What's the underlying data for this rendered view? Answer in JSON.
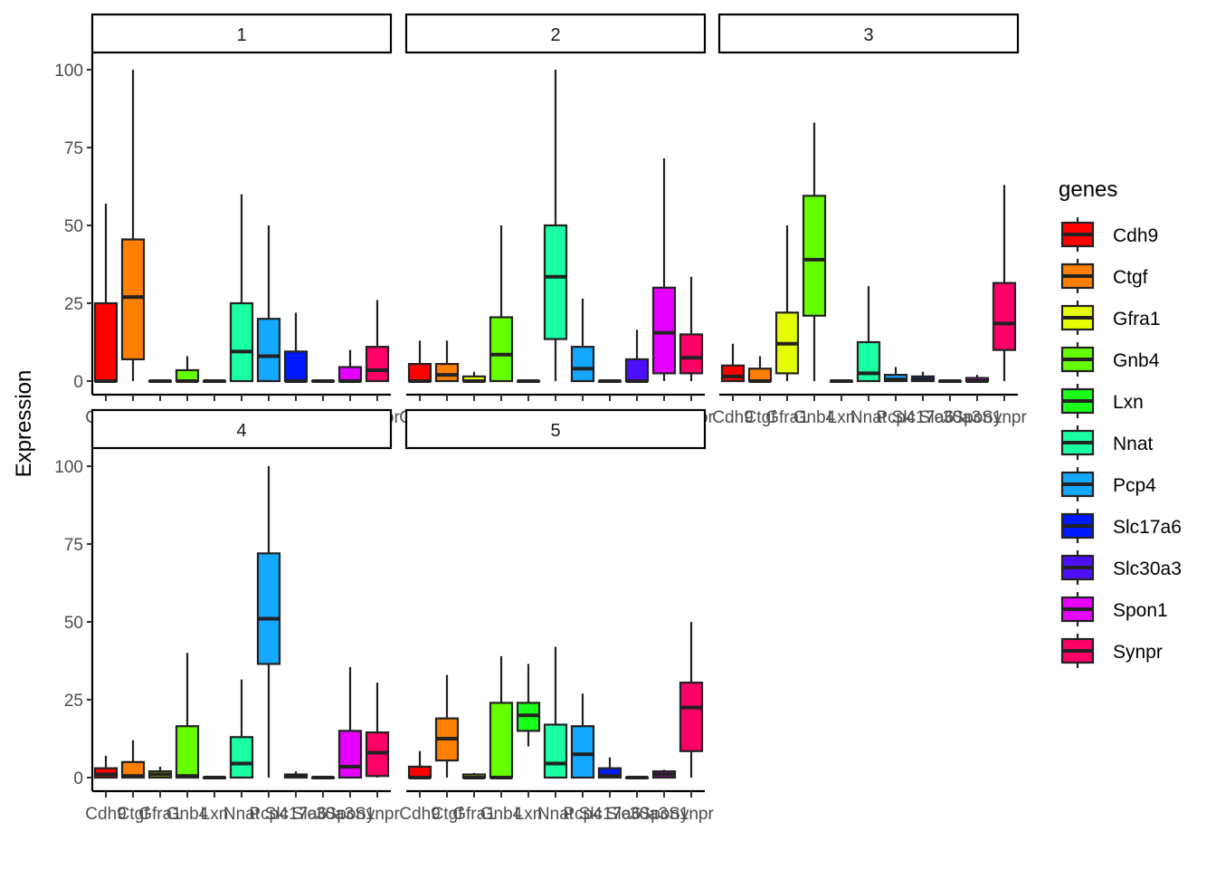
{
  "chart_data": {
    "type": "boxplot",
    "ylabel": "Expression",
    "xlabel": "",
    "ylim": [
      0,
      100
    ],
    "y_ticks": [
      0,
      25,
      50,
      75,
      100
    ],
    "facet_layout": "wrap, 3 columns, free x-axis labels per panel",
    "genes": [
      "Cdh9",
      "Ctgf",
      "Gfra1",
      "Gnb4",
      "Lxn",
      "Nnat",
      "Pcp4",
      "Slc17a6",
      "Slc30a3",
      "Spon1",
      "Synpr"
    ],
    "colors": {
      "Cdh9": "#FF0000",
      "Ctgf": "#FF7F00",
      "Gfra1": "#E5FF00",
      "Gnb4": "#66FF00",
      "Lxn": "#1AFF1A",
      "Nnat": "#1AFFA3",
      "Pcp4": "#14A8FF",
      "Slc17a6": "#0019FF",
      "Slc30a3": "#4C0FFF",
      "Spon1": "#E600FF",
      "Synpr": "#FF0066"
    },
    "legend": {
      "title": "genes",
      "position": "right"
    },
    "panels": [
      {
        "label": "1",
        "boxes": [
          {
            "gene": "Cdh9",
            "lower": 0,
            "q1": 0,
            "median": 0,
            "q3": 25,
            "upper": 57
          },
          {
            "gene": "Ctgf",
            "lower": 0,
            "q1": 7,
            "median": 27,
            "q3": 45.5,
            "upper": 100
          },
          {
            "gene": "Gfra1",
            "lower": 0,
            "q1": 0,
            "median": 0,
            "q3": 0,
            "upper": 0
          },
          {
            "gene": "Gnb4",
            "lower": 0,
            "q1": 0,
            "median": 0,
            "q3": 3.5,
            "upper": 8
          },
          {
            "gene": "Lxn",
            "lower": 0,
            "q1": 0,
            "median": 0,
            "q3": 0,
            "upper": 0
          },
          {
            "gene": "Nnat",
            "lower": 0,
            "q1": 0,
            "median": 9.5,
            "q3": 25,
            "upper": 60
          },
          {
            "gene": "Pcp4",
            "lower": 0,
            "q1": 0,
            "median": 8,
            "q3": 20,
            "upper": 50
          },
          {
            "gene": "Slc17a6",
            "lower": 0,
            "q1": 0,
            "median": 0,
            "q3": 9.5,
            "upper": 22
          },
          {
            "gene": "Slc30a3",
            "lower": 0,
            "q1": 0,
            "median": 0,
            "q3": 0,
            "upper": 0
          },
          {
            "gene": "Spon1",
            "lower": 0,
            "q1": 0,
            "median": 0,
            "q3": 4.5,
            "upper": 10
          },
          {
            "gene": "Synpr",
            "lower": 0,
            "q1": 0,
            "median": 3.5,
            "q3": 11,
            "upper": 26
          }
        ]
      },
      {
        "label": "2",
        "boxes": [
          {
            "gene": "Cdh9",
            "lower": 0,
            "q1": 0,
            "median": 0,
            "q3": 5.5,
            "upper": 13
          },
          {
            "gene": "Ctgf",
            "lower": 0,
            "q1": 0,
            "median": 2,
            "q3": 5.5,
            "upper": 13
          },
          {
            "gene": "Gfra1",
            "lower": 0,
            "q1": 0,
            "median": 0,
            "q3": 1.5,
            "upper": 3
          },
          {
            "gene": "Gnb4",
            "lower": 0,
            "q1": 0,
            "median": 8.5,
            "q3": 20.5,
            "upper": 50
          },
          {
            "gene": "Lxn",
            "lower": 0,
            "q1": 0,
            "median": 0,
            "q3": 0,
            "upper": 0
          },
          {
            "gene": "Nnat",
            "lower": 0,
            "q1": 13.5,
            "median": 33.5,
            "q3": 50,
            "upper": 100
          },
          {
            "gene": "Pcp4",
            "lower": 0,
            "q1": 0,
            "median": 4,
            "q3": 11,
            "upper": 26.5
          },
          {
            "gene": "Slc17a6",
            "lower": 0,
            "q1": 0,
            "median": 0,
            "q3": 0,
            "upper": 0
          },
          {
            "gene": "Slc30a3",
            "lower": 0,
            "q1": 0,
            "median": 0,
            "q3": 7,
            "upper": 16.5
          },
          {
            "gene": "Spon1",
            "lower": 0,
            "q1": 2.5,
            "median": 15.5,
            "q3": 30,
            "upper": 71.5
          },
          {
            "gene": "Synpr",
            "lower": 0,
            "q1": 2.5,
            "median": 7.5,
            "q3": 15,
            "upper": 33.5
          }
        ]
      },
      {
        "label": "3",
        "boxes": [
          {
            "gene": "Cdh9",
            "lower": 0,
            "q1": 0,
            "median": 1.5,
            "q3": 5,
            "upper": 12
          },
          {
            "gene": "Ctgf",
            "lower": 0,
            "q1": 0,
            "median": 0,
            "q3": 4,
            "upper": 8
          },
          {
            "gene": "Gfra1",
            "lower": 0,
            "q1": 2.5,
            "median": 12,
            "q3": 22,
            "upper": 50
          },
          {
            "gene": "Gnb4",
            "lower": 0,
            "q1": 21,
            "median": 39,
            "q3": 59.5,
            "upper": 83
          },
          {
            "gene": "Lxn",
            "lower": 0,
            "q1": 0,
            "median": 0,
            "q3": 0,
            "upper": 0
          },
          {
            "gene": "Nnat",
            "lower": 0,
            "q1": 0,
            "median": 2.5,
            "q3": 12.5,
            "upper": 30.5
          },
          {
            "gene": "Pcp4",
            "lower": 0,
            "q1": 0,
            "median": 0.5,
            "q3": 2,
            "upper": 4.5
          },
          {
            "gene": "Slc17a6",
            "lower": 0,
            "q1": 0,
            "median": 0.5,
            "q3": 1.5,
            "upper": 3
          },
          {
            "gene": "Slc30a3",
            "lower": 0,
            "q1": 0,
            "median": 0,
            "q3": 0,
            "upper": 0
          },
          {
            "gene": "Spon1",
            "lower": 0,
            "q1": 0,
            "median": 0,
            "q3": 1,
            "upper": 2
          },
          {
            "gene": "Synpr",
            "lower": 0,
            "q1": 10,
            "median": 18.5,
            "q3": 31.5,
            "upper": 63
          }
        ]
      },
      {
        "label": "4",
        "boxes": [
          {
            "gene": "Cdh9",
            "lower": 0,
            "q1": 0,
            "median": 1,
            "q3": 3,
            "upper": 7
          },
          {
            "gene": "Ctgf",
            "lower": 0,
            "q1": 0,
            "median": 0.5,
            "q3": 5,
            "upper": 12
          },
          {
            "gene": "Gfra1",
            "lower": 0,
            "q1": 0,
            "median": 1,
            "q3": 2,
            "upper": 3.5
          },
          {
            "gene": "Gnb4",
            "lower": 0,
            "q1": 0,
            "median": 0.5,
            "q3": 16.5,
            "upper": 40
          },
          {
            "gene": "Lxn",
            "lower": 0,
            "q1": 0,
            "median": 0,
            "q3": 0,
            "upper": 0
          },
          {
            "gene": "Nnat",
            "lower": 0,
            "q1": 0,
            "median": 4.5,
            "q3": 13,
            "upper": 31.5
          },
          {
            "gene": "Pcp4",
            "lower": 0,
            "q1": 36.5,
            "median": 51,
            "q3": 72,
            "upper": 100
          },
          {
            "gene": "Slc17a6",
            "lower": 0,
            "q1": 0,
            "median": 0.5,
            "q3": 1,
            "upper": 2
          },
          {
            "gene": "Slc30a3",
            "lower": 0,
            "q1": 0,
            "median": 0,
            "q3": 0,
            "upper": 0
          },
          {
            "gene": "Spon1",
            "lower": 0,
            "q1": 0,
            "median": 3.5,
            "q3": 15,
            "upper": 35.5
          },
          {
            "gene": "Synpr",
            "lower": 0,
            "q1": 0.5,
            "median": 8,
            "q3": 14.5,
            "upper": 30.5
          }
        ]
      },
      {
        "label": "5",
        "boxes": [
          {
            "gene": "Cdh9",
            "lower": 0,
            "q1": 0,
            "median": 0,
            "q3": 3.5,
            "upper": 8.5
          },
          {
            "gene": "Ctgf",
            "lower": 0,
            "q1": 5.5,
            "median": 12.5,
            "q3": 19,
            "upper": 33
          },
          {
            "gene": "Gfra1",
            "lower": 0,
            "q1": 0,
            "median": 0,
            "q3": 1,
            "upper": 1.5
          },
          {
            "gene": "Gnb4",
            "lower": 0,
            "q1": 0,
            "median": 0,
            "q3": 24,
            "upper": 39
          },
          {
            "gene": "Lxn",
            "lower": 10,
            "q1": 15,
            "median": 20,
            "q3": 24,
            "upper": 36.5
          },
          {
            "gene": "Nnat",
            "lower": 0,
            "q1": 0,
            "median": 4.5,
            "q3": 17,
            "upper": 42
          },
          {
            "gene": "Pcp4",
            "lower": 0,
            "q1": 0,
            "median": 7.5,
            "q3": 16.5,
            "upper": 27
          },
          {
            "gene": "Slc17a6",
            "lower": 0,
            "q1": 0,
            "median": 0.5,
            "q3": 3,
            "upper": 6.5
          },
          {
            "gene": "Slc30a3",
            "lower": 0,
            "q1": 0,
            "median": 0,
            "q3": 0,
            "upper": 0
          },
          {
            "gene": "Spon1",
            "lower": 0,
            "q1": 0,
            "median": 1,
            "q3": 2,
            "upper": 2.5
          },
          {
            "gene": "Synpr",
            "lower": 0,
            "q1": 8.5,
            "median": 22.5,
            "q3": 30.5,
            "upper": 50
          }
        ]
      }
    ]
  }
}
